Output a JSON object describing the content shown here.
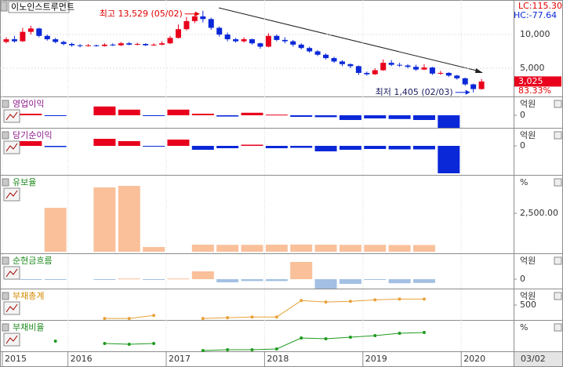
{
  "chart_data": [
    {
      "type": "candlestick",
      "title": "이노인스트루먼트",
      "categories": [
        "2015",
        null,
        null,
        null,
        null,
        null,
        null,
        null,
        "2016",
        null,
        null,
        null,
        null,
        null,
        null,
        null,
        null,
        null,
        null,
        null,
        "2017",
        null,
        null,
        null,
        null,
        null,
        null,
        null,
        null,
        null,
        null,
        null,
        "2018",
        null,
        null,
        null,
        null,
        null,
        null,
        null,
        null,
        null,
        null,
        null,
        "2019",
        null,
        null,
        null,
        null,
        null,
        null,
        null,
        null,
        null,
        null,
        null,
        "2020",
        null,
        null
      ],
      "open": [
        8900,
        9300,
        9000,
        10400,
        10900,
        9800,
        9300,
        8900,
        8600,
        8400,
        8300,
        8400,
        8300,
        8500,
        8400,
        8700,
        8500,
        8600,
        8400,
        8500,
        8700,
        9500,
        10800,
        12000,
        12700,
        12300,
        11000,
        10000,
        9300,
        9000,
        9300,
        8700,
        8200,
        9800,
        9200,
        9000,
        8500,
        8000,
        7500,
        7000,
        6500,
        6000,
        5600,
        5300,
        4300,
        4100,
        4700,
        5800,
        5500,
        5400,
        5200,
        4800,
        5100,
        4200,
        4300,
        3900,
        3500,
        2600,
        1900
      ],
      "high": [
        9600,
        9800,
        11000,
        11300,
        11000,
        10000,
        9500,
        9100,
        8800,
        8600,
        8600,
        8500,
        8700,
        8700,
        8900,
        8900,
        8800,
        8700,
        8700,
        9000,
        9800,
        11500,
        12600,
        13200,
        13529,
        12500,
        11200,
        10300,
        9500,
        9600,
        9400,
        8800,
        10200,
        10000,
        9600,
        9200,
        8700,
        8200,
        7700,
        7200,
        6700,
        6200,
        5700,
        5400,
        4500,
        5000,
        6300,
        6200,
        5800,
        5600,
        5500,
        5600,
        5200,
        4600,
        4400,
        4000,
        3600,
        2700,
        3400
      ],
      "low": [
        8700,
        8800,
        8900,
        10000,
        9600,
        9100,
        8700,
        8400,
        8200,
        8100,
        8200,
        8200,
        8200,
        8300,
        8300,
        8400,
        8400,
        8300,
        8300,
        8400,
        8600,
        9400,
        10600,
        11700,
        11800,
        10700,
        9700,
        9000,
        8800,
        8800,
        8500,
        7900,
        8100,
        9000,
        8700,
        8200,
        7800,
        7300,
        6800,
        6300,
        5800,
        5300,
        5000,
        4000,
        3900,
        4000,
        4600,
        5300,
        5200,
        5000,
        4600,
        4700,
        4000,
        4000,
        3700,
        3300,
        2400,
        1405,
        1800
      ],
      "close": [
        9300,
        9000,
        10400,
        10900,
        9800,
        9300,
        8900,
        8600,
        8400,
        8300,
        8400,
        8300,
        8500,
        8400,
        8700,
        8500,
        8600,
        8400,
        8500,
        8700,
        9500,
        10800,
        12000,
        12700,
        12300,
        11000,
        10000,
        9300,
        9000,
        9300,
        8700,
        8200,
        9800,
        9200,
        9000,
        8500,
        8000,
        7500,
        7000,
        6500,
        6000,
        5600,
        5300,
        4300,
        4100,
        4700,
        5800,
        5500,
        5400,
        5200,
        4800,
        5100,
        4200,
        4300,
        3900,
        3500,
        2600,
        1900,
        3025
      ],
      "ylim": [
        800,
        14900
      ],
      "yticks": [
        {
          "value": 5000,
          "label": "5,000"
        },
        {
          "value": 10000,
          "label": "10,000"
        }
      ],
      "grid": true,
      "up_color": "#e8001c",
      "down_color": "#0a28d8",
      "high_annotation": "최고 13,529 (05/02)",
      "low_annotation": "최저 1,405 (02/03)",
      "last": {
        "value": 3025,
        "label": "3,025"
      },
      "change_label": "83.33%",
      "lc_label": "LC:115.30",
      "hc_label": "HC:-77.64",
      "end_date": "03/02"
    },
    {
      "type": "bar",
      "title": "영업이익",
      "unit": "억원",
      "ylim": [
        -4,
        5.75
      ],
      "yticks": [
        0
      ],
      "values": [
        0.5,
        -0.2,
        null,
        2.8,
        1.8,
        -0.2,
        1.8,
        0.5,
        -0.4,
        0.8,
        0.2,
        -0.5,
        -0.6,
        -1.5,
        -1.0,
        -1.2,
        -1.5,
        -4
      ],
      "pos_color": "#e8001c",
      "neg_color": "#0a28d8"
    },
    {
      "type": "bar",
      "title": "당기순이익",
      "unit": "억원",
      "ylim": [
        -7.4,
        4.4
      ],
      "yticks": [
        0
      ],
      "values": [
        1.2,
        -0.3,
        null,
        1.8,
        1.2,
        -0.2,
        1.6,
        -1.0,
        -0.6,
        0.3,
        -0.6,
        -0.5,
        -1.4,
        -1.0,
        -0.8,
        -0.9,
        -0.9,
        -7
      ],
      "pos_color": "#e8001c",
      "neg_color": "#0a28d8"
    },
    {
      "type": "bar",
      "title": "유보율",
      "unit": "%",
      "ylim": [
        -100,
        4950
      ],
      "yticks": [
        {
          "value": 2500,
          "label": "2,500.00"
        }
      ],
      "values": [
        null,
        2857,
        null,
        4184,
        4286,
        306,
        null,
        460,
        450,
        450,
        460,
        470,
        460,
        450,
        450,
        440,
        440,
        null
      ],
      "pos_color": "#f9c09a",
      "neg_color": "#a3c0e3"
    },
    {
      "type": "bar",
      "title": "순현금흐름",
      "unit": "억원",
      "ylim": [
        -3,
        8
      ],
      "yticks": [
        0
      ],
      "values": [
        -0.1,
        -0.1,
        null,
        -0.1,
        0.2,
        -0.1,
        0.2,
        2.5,
        -1,
        -0.6,
        -0.6,
        5.5,
        -3,
        -1.5,
        -0.2,
        -1.3,
        -1.2,
        null
      ],
      "pos_color": "#f9c09a",
      "neg_color": "#a3c0e3"
    },
    {
      "type": "line",
      "title": "부채총계",
      "unit": "억원",
      "ylim": [
        300,
        710
      ],
      "yticks": [
        500
      ],
      "values": [
        null,
        null,
        null,
        320,
        320,
        360,
        null,
        320,
        330,
        340,
        340,
        560,
        540,
        550,
        570,
        580,
        580,
        null
      ],
      "color": "#e8a23a"
    },
    {
      "type": "line",
      "title": "부채비율",
      "unit": "%",
      "ylim": [
        0,
        78
      ],
      "yticks": [],
      "values": [
        null,
        26,
        null,
        20,
        18,
        20,
        null,
        2,
        4,
        4,
        6,
        34,
        32,
        36,
        40,
        46,
        48,
        null
      ],
      "color": "#1f9b1f"
    }
  ]
}
